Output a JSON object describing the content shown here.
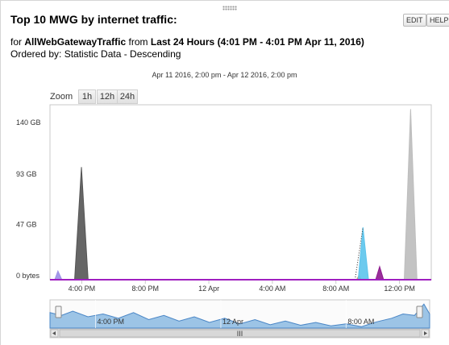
{
  "header": {
    "title": "Top 10 MWG by internet traffic:",
    "edit_label": "EDIT",
    "help_label": "HELP"
  },
  "subtitle": {
    "for_prefix": "for",
    "entity": "AllWebGatewayTraffic",
    "from_word": "from",
    "period": "Last 24 Hours (4:01 PM - 4:01 PM Apr 11, 2016)",
    "order_line": "Ordered by: Statistic Data - Descending"
  },
  "range_label": "Apr 11 2016, 2:00 pm - Apr 12 2016, 2:00 pm",
  "zoom": {
    "label": "Zoom",
    "buttons": [
      "1h",
      "12h",
      "24h"
    ]
  },
  "navigator": {
    "labels": [
      "4:00 PM",
      "12 Apr",
      "8:00 AM"
    ],
    "scroll_grip": "III"
  },
  "colors": {
    "axis": "#c8c8c8",
    "baseline": "#a020c0",
    "navigator_fill": "#9cc4e6",
    "navigator_line": "#4a86c6",
    "scrollbar": "#e4e4e4"
  },
  "chart_data": {
    "type": "area",
    "x_unit": "hours since Apr 11 2016 2:00 pm",
    "xlim": [
      0,
      24
    ],
    "x_ticks": [
      {
        "x": 2,
        "label": "4:00 PM"
      },
      {
        "x": 6,
        "label": "8:00 PM"
      },
      {
        "x": 10,
        "label": "12 Apr"
      },
      {
        "x": 14,
        "label": "4:00 AM"
      },
      {
        "x": 18,
        "label": "8:00 AM"
      },
      {
        "x": 22,
        "label": "12:00 PM"
      }
    ],
    "y_unit": "GB",
    "ylim": [
      0,
      160
    ],
    "y_ticks": [
      {
        "y": 0,
        "label": "0 bytes"
      },
      {
        "y": 47,
        "label": "47 GB"
      },
      {
        "y": 93,
        "label": "93 GB"
      },
      {
        "y": 140,
        "label": "140 GB"
      }
    ],
    "grid": false,
    "legend": "none",
    "series": [
      {
        "color": "#9b8fe6",
        "points": [
          [
            0.3,
            0
          ],
          [
            0.5,
            8
          ],
          [
            0.75,
            0
          ]
        ]
      },
      {
        "color": "#555555",
        "points": [
          [
            1.55,
            0
          ],
          [
            1.98,
            103
          ],
          [
            2.4,
            0
          ]
        ]
      },
      {
        "color": "#c8a070",
        "points": [
          [
            19.3,
            0
          ],
          [
            19.45,
            4
          ],
          [
            19.6,
            0
          ]
        ]
      },
      {
        "color": "#5cc4ec",
        "points": [
          [
            19.4,
            0
          ],
          [
            19.7,
            48
          ],
          [
            20.05,
            0
          ]
        ]
      },
      {
        "color": "#8e1a8e",
        "points": [
          [
            20.5,
            0
          ],
          [
            20.75,
            12
          ],
          [
            21.0,
            0
          ]
        ]
      },
      {
        "color": "#bdbdbd",
        "points": [
          [
            22.3,
            0
          ],
          [
            22.7,
            156
          ],
          [
            23.1,
            0
          ]
        ]
      }
    ]
  }
}
